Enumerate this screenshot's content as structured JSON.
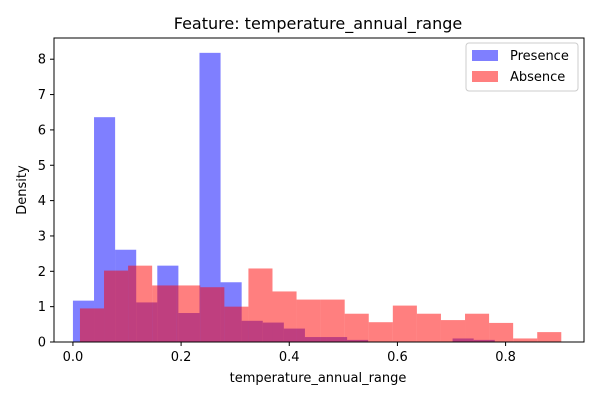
{
  "chart_data": {
    "type": "histogram",
    "title": "Feature: temperature_annual_range",
    "xlabel": "temperature_annual_range",
    "ylabel": "Density",
    "xlim": [
      -0.035,
      0.945
    ],
    "ylim": [
      0,
      8.6
    ],
    "xticks": [
      0.0,
      0.2,
      0.4,
      0.6,
      0.8
    ],
    "xtick_labels": [
      "0.0",
      "0.2",
      "0.4",
      "0.6",
      "0.8"
    ],
    "yticks": [
      0,
      1,
      2,
      3,
      4,
      5,
      6,
      7,
      8
    ],
    "ytick_labels": [
      "0",
      "1",
      "2",
      "3",
      "4",
      "5",
      "6",
      "7",
      "8"
    ],
    "grid": false,
    "legend_position": "top-right",
    "series": [
      {
        "name": "Presence",
        "color": "#0000ff",
        "opacity": 0.5,
        "bin_edges": [
          0.0,
          0.039,
          0.078,
          0.117,
          0.156,
          0.195,
          0.234,
          0.273,
          0.312,
          0.351,
          0.39,
          0.429,
          0.468,
          0.507,
          0.546,
          0.585,
          0.624,
          0.663,
          0.702,
          0.741,
          0.78
        ],
        "values": [
          1.17,
          6.36,
          2.61,
          1.12,
          2.16,
          0.82,
          8.18,
          1.69,
          0.6,
          0.55,
          0.38,
          0.14,
          0.14,
          0.06,
          0.0,
          0.0,
          0.0,
          0.0,
          0.1,
          0.06
        ]
      },
      {
        "name": "Absence",
        "color": "#ff0000",
        "opacity": 0.5,
        "bin_edges": [
          0.013,
          0.0575,
          0.102,
          0.1465,
          0.191,
          0.2355,
          0.28,
          0.3245,
          0.369,
          0.4135,
          0.458,
          0.5025,
          0.547,
          0.5915,
          0.636,
          0.6805,
          0.725,
          0.7695,
          0.814,
          0.8585,
          0.903
        ],
        "values": [
          0.95,
          2.02,
          2.16,
          1.6,
          1.6,
          1.55,
          1.0,
          2.08,
          1.43,
          1.2,
          1.2,
          0.8,
          0.56,
          1.03,
          0.8,
          0.62,
          0.8,
          0.54,
          0.1,
          0.28
        ]
      }
    ]
  }
}
